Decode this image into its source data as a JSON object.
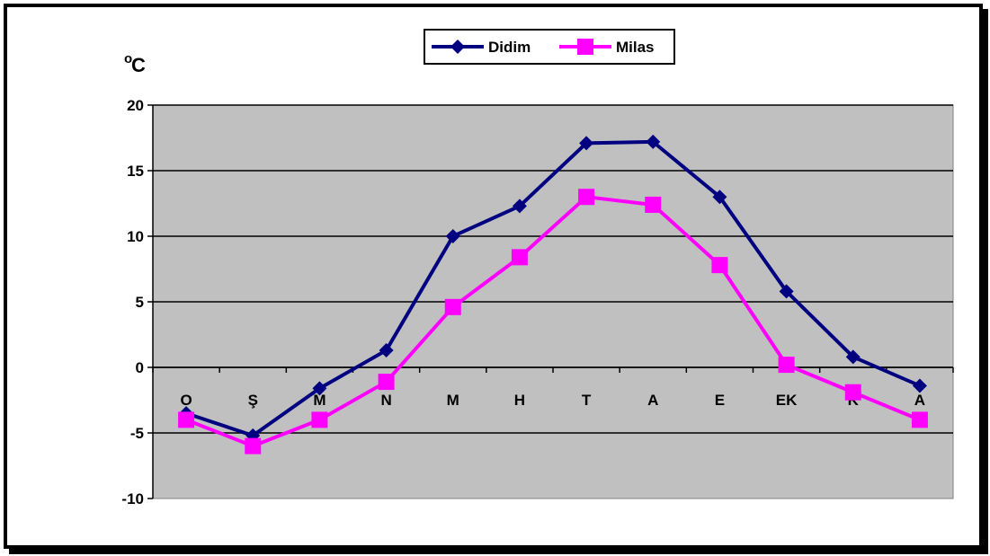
{
  "chart_data": {
    "type": "line",
    "title": "",
    "xlabel": "",
    "ylabel": "°C",
    "ylabel_main": "C",
    "ylabel_sup": "o",
    "categories": [
      "O",
      "Ş",
      "M",
      "N",
      "M",
      "H",
      "T",
      "A",
      "E",
      "EK",
      "K",
      "A"
    ],
    "ylim": [
      -10,
      20
    ],
    "yticks": [
      -10,
      -5,
      0,
      5,
      10,
      15,
      20
    ],
    "grid": true,
    "legend_position": "top",
    "plot_background": "#c0c0c0",
    "series": [
      {
        "name": "Didim",
        "marker": "diamond",
        "color": "#000080",
        "values": [
          -3.5,
          -5.2,
          -1.6,
          1.3,
          10.0,
          12.3,
          17.1,
          17.2,
          13.0,
          5.8,
          0.8,
          -1.4
        ]
      },
      {
        "name": "Milas",
        "marker": "square",
        "color": "#ff00ff",
        "values": [
          -4.0,
          -6.0,
          -4.0,
          -1.1,
          4.6,
          8.4,
          13.0,
          12.4,
          7.8,
          0.2,
          -1.9,
          -4.0
        ]
      }
    ]
  }
}
